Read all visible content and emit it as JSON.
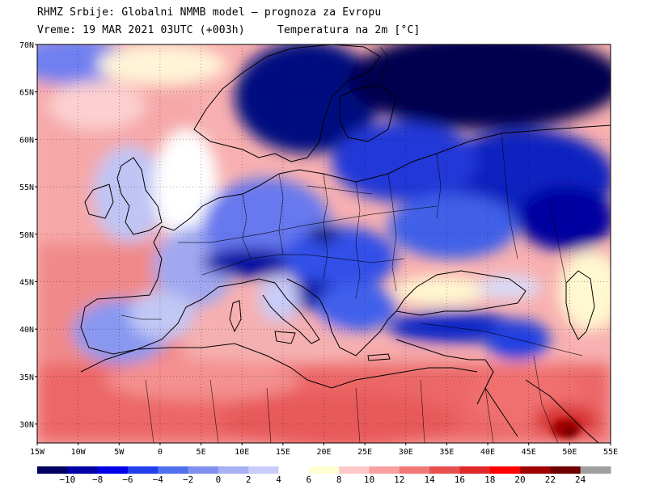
{
  "header": {
    "line1": "RHMZ Srbije: Globalni NMMB model — prognoza za Evropu",
    "line2_left": "Vreme: 19 MAR 2021 03UTC (+003h)",
    "line2_right": "Temperatura na 2m [°C]"
  },
  "axes": {
    "lat_labels": [
      "70N",
      "65N",
      "60N",
      "55N",
      "50N",
      "45N",
      "40N",
      "35N",
      "30N"
    ],
    "lat_values": [
      70,
      65,
      60,
      55,
      50,
      45,
      40,
      35,
      30
    ],
    "lon_labels": [
      "15W",
      "10W",
      "5W",
      "0",
      "5E",
      "10E",
      "15E",
      "20E",
      "25E",
      "30E",
      "35E",
      "40E",
      "45E",
      "50E",
      "55E"
    ],
    "lon_values": [
      -15,
      -10,
      -5,
      0,
      5,
      10,
      15,
      20,
      25,
      30,
      35,
      40,
      45,
      50,
      55
    ],
    "lat_range": [
      28,
      70
    ],
    "lon_range": [
      -15,
      55
    ]
  },
  "legend": {
    "labels": [
      "−10",
      "−8",
      "−6",
      "−4",
      "−2",
      "0",
      "2",
      "4",
      "6",
      "8",
      "10",
      "12",
      "14",
      "16",
      "18",
      "20",
      "22",
      "24"
    ],
    "colors": [
      "#000060",
      "#0000a8",
      "#0000e8",
      "#2040f0",
      "#5070f0",
      "#8090f0",
      "#a8b0f4",
      "#c8ccf8",
      "#ffffff",
      "#ffffd0",
      "#fcc8c8",
      "#f8a0a0",
      "#f07878",
      "#e85050",
      "#e02828",
      "#ff0000",
      "#a00000",
      "#700000",
      "#a0a0a0"
    ]
  }
}
